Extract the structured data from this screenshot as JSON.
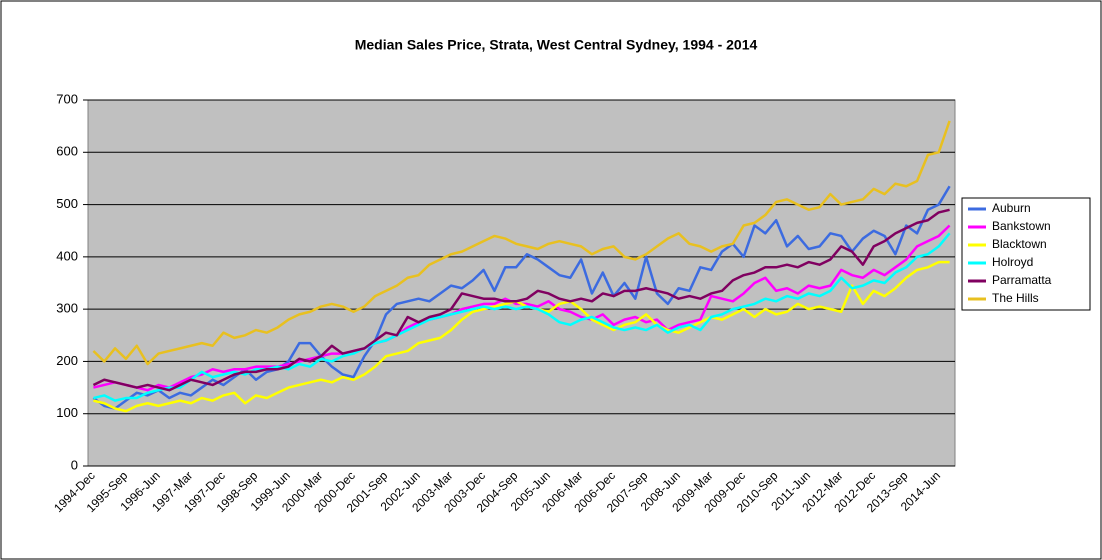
{
  "chart_data": {
    "type": "line",
    "title": "Median Sales Price, Strata, West Central Sydney,  1994 - 2014",
    "categories": [
      "1994-Dec",
      null,
      null,
      "1995-Sep",
      null,
      null,
      "1996-Jun",
      null,
      null,
      "1997-Mar",
      null,
      null,
      "1997-Dec",
      null,
      null,
      "1998-Sep",
      null,
      null,
      "1999-Jun",
      null,
      null,
      "2000-Mar",
      null,
      null,
      "2000-Dec",
      null,
      null,
      "2001-Sep",
      null,
      null,
      "2002-Jun",
      null,
      null,
      "2003-Mar",
      null,
      null,
      "2003-Dec",
      null,
      null,
      "2004-Sep",
      null,
      null,
      "2005-Jun",
      null,
      null,
      "2006-Mar",
      null,
      null,
      "2006-Dec",
      null,
      null,
      "2007-Sep",
      null,
      null,
      "2008-Jun",
      null,
      null,
      "2009-Mar",
      null,
      null,
      "2009-Dec",
      null,
      null,
      "2010-Sep",
      null,
      null,
      "2011-Jun",
      null,
      null,
      "2012-Mar",
      null,
      null,
      "2012-Dec",
      null,
      null,
      "2013-Sep",
      null,
      null,
      "2014-Jun",
      null
    ],
    "series": [
      {
        "name": "Auburn",
        "color": "#3c6be0",
        "values": [
          130,
          115,
          110,
          125,
          140,
          135,
          145,
          130,
          140,
          135,
          150,
          165,
          155,
          170,
          185,
          165,
          180,
          185,
          200,
          235,
          235,
          210,
          190,
          175,
          170,
          210,
          240,
          290,
          310,
          315,
          320,
          315,
          330,
          345,
          340,
          355,
          375,
          335,
          380,
          380,
          405,
          395,
          380,
          365,
          360,
          395,
          330,
          370,
          325,
          350,
          320,
          400,
          330,
          310,
          340,
          335,
          380,
          375,
          410,
          425,
          400,
          460,
          445,
          470,
          420,
          440,
          415,
          420,
          445,
          440,
          410,
          435,
          450,
          440,
          405,
          460,
          445,
          490,
          500,
          535
        ]
      },
      {
        "name": "Bankstown",
        "color": "#ff00ff",
        "values": [
          150,
          155,
          160,
          155,
          150,
          145,
          155,
          150,
          160,
          170,
          175,
          185,
          180,
          185,
          185,
          190,
          190,
          190,
          195,
          200,
          205,
          210,
          215,
          215,
          220,
          225,
          235,
          240,
          250,
          265,
          275,
          280,
          285,
          290,
          300,
          305,
          310,
          310,
          320,
          310,
          310,
          305,
          315,
          300,
          295,
          285,
          280,
          290,
          270,
          280,
          285,
          275,
          280,
          260,
          270,
          275,
          280,
          325,
          320,
          315,
          330,
          350,
          360,
          335,
          340,
          330,
          345,
          340,
          345,
          375,
          365,
          360,
          375,
          365,
          380,
          395,
          420,
          430,
          440,
          460
        ]
      },
      {
        "name": "Blacktown",
        "color": "#ffff00",
        "values": [
          125,
          120,
          110,
          105,
          115,
          120,
          115,
          120,
          125,
          120,
          130,
          125,
          135,
          140,
          120,
          135,
          130,
          140,
          150,
          155,
          160,
          165,
          160,
          170,
          165,
          175,
          190,
          210,
          215,
          220,
          235,
          240,
          245,
          260,
          280,
          295,
          300,
          305,
          310,
          315,
          305,
          300,
          295,
          310,
          315,
          300,
          280,
          270,
          260,
          270,
          275,
          290,
          270,
          260,
          255,
          265,
          275,
          285,
          280,
          290,
          300,
          285,
          300,
          290,
          295,
          310,
          300,
          305,
          300,
          295,
          345,
          310,
          335,
          325,
          340,
          360,
          375,
          380,
          390,
          390
        ]
      },
      {
        "name": "Holroyd",
        "color": "#00ffff",
        "values": [
          130,
          135,
          125,
          130,
          130,
          140,
          145,
          150,
          150,
          165,
          180,
          170,
          175,
          180,
          175,
          185,
          185,
          190,
          185,
          195,
          190,
          205,
          200,
          210,
          215,
          225,
          235,
          240,
          250,
          260,
          270,
          280,
          285,
          290,
          295,
          300,
          305,
          300,
          305,
          300,
          305,
          300,
          290,
          275,
          270,
          280,
          285,
          275,
          265,
          260,
          265,
          260,
          270,
          255,
          265,
          270,
          260,
          285,
          290,
          300,
          305,
          310,
          320,
          315,
          325,
          320,
          330,
          325,
          335,
          360,
          340,
          345,
          355,
          350,
          370,
          380,
          400,
          405,
          420,
          445
        ]
      },
      {
        "name": "Parramatta",
        "color": "#800060",
        "values": [
          155,
          165,
          160,
          155,
          150,
          155,
          150,
          145,
          155,
          165,
          160,
          155,
          165,
          175,
          180,
          180,
          185,
          185,
          190,
          205,
          200,
          210,
          230,
          215,
          220,
          225,
          240,
          255,
          250,
          285,
          275,
          285,
          290,
          300,
          330,
          325,
          320,
          320,
          315,
          315,
          320,
          335,
          330,
          320,
          315,
          320,
          315,
          330,
          325,
          335,
          335,
          340,
          335,
          330,
          320,
          325,
          320,
          330,
          335,
          355,
          365,
          370,
          380,
          380,
          385,
          380,
          390,
          385,
          395,
          420,
          410,
          385,
          420,
          430,
          445,
          455,
          465,
          470,
          485,
          490
        ]
      },
      {
        "name": "The Hills",
        "color": "#e8c020",
        "values": [
          220,
          200,
          225,
          205,
          230,
          195,
          215,
          220,
          225,
          230,
          235,
          230,
          255,
          245,
          250,
          260,
          255,
          265,
          280,
          290,
          295,
          305,
          310,
          305,
          295,
          305,
          325,
          335,
          345,
          360,
          365,
          385,
          395,
          405,
          410,
          420,
          430,
          440,
          435,
          425,
          420,
          415,
          425,
          430,
          425,
          420,
          405,
          415,
          420,
          400,
          395,
          405,
          420,
          435,
          445,
          425,
          420,
          410,
          420,
          425,
          460,
          465,
          480,
          505,
          510,
          500,
          490,
          495,
          520,
          500,
          505,
          510,
          530,
          520,
          540,
          535,
          545,
          595,
          600,
          660
        ]
      }
    ],
    "ylim": [
      0,
      700
    ],
    "yticks": [
      0,
      100,
      200,
      300,
      400,
      500,
      600,
      700
    ],
    "grid": true,
    "legend": "right",
    "plot_background": "#c0c0c0"
  }
}
